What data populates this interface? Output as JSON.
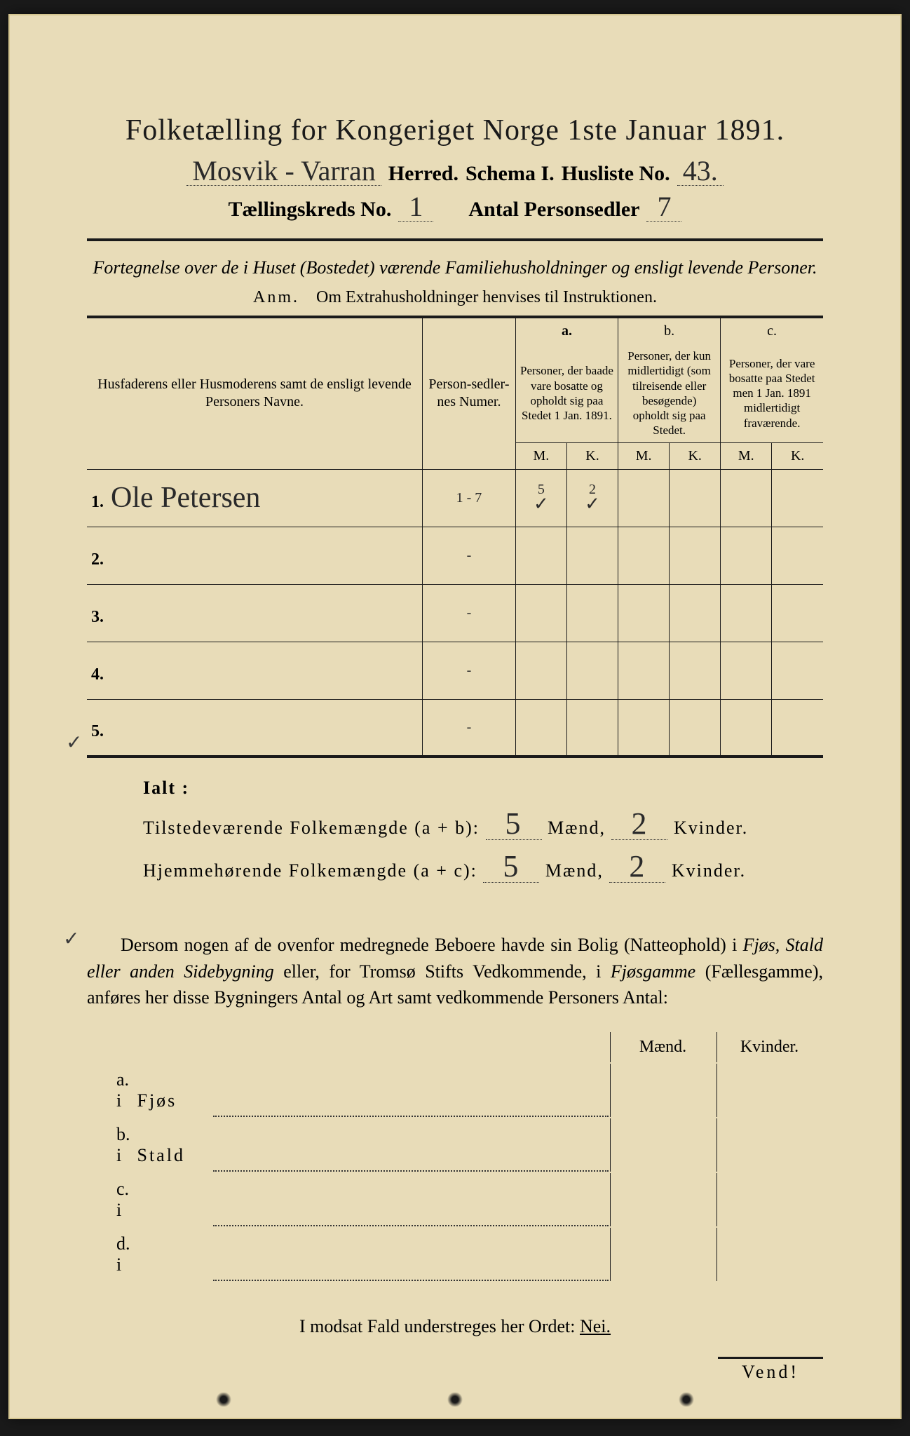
{
  "colors": {
    "paper": "#e8dcb8",
    "ink": "#1a1a1a",
    "hand": "#2a2a2a",
    "background": "#1a1a1a"
  },
  "header": {
    "title": "Folketælling for Kongeriget Norge 1ste Januar 1891.",
    "herred_value": "Mosvik - Varran",
    "herred_label": "Herred.",
    "schema_label": "Schema I.",
    "husliste_label": "Husliste No.",
    "husliste_value": "43.",
    "kreds_label": "Tællingskreds No.",
    "kreds_value": "1",
    "antal_label": "Antal Personsedler",
    "antal_value": "7"
  },
  "intro": {
    "text": "Fortegnelse over de i Huset (Bostedet) værende Familiehusholdninger og ensligt levende Personer.",
    "anm_label": "Anm.",
    "anm_text": "Om Extrahusholdninger henvises til Instruktionen."
  },
  "table": {
    "col_name": "Husfaderens eller Husmoderens samt de ensligt levende Personers Navne.",
    "col_sedler": "Person-sedler-nes Numer.",
    "col_a_label": "a.",
    "col_a_text": "Personer, der baade vare bosatte og opholdt sig paa Stedet 1 Jan. 1891.",
    "col_b_label": "b.",
    "col_b_text": "Personer, der kun midlertidigt (som tilreisende eller besøgende) opholdt sig paa Stedet.",
    "col_c_label": "c.",
    "col_c_text": "Personer, der vare bosatte paa Stedet men 1 Jan. 1891 midlertidigt fraværende.",
    "m": "M.",
    "k": "K.",
    "rows": [
      {
        "n": "1.",
        "name": "Ole Petersen",
        "sedler": "1 - 7",
        "a_m": "5",
        "a_k": "2",
        "b_m": "",
        "b_k": "",
        "c_m": "",
        "c_k": ""
      },
      {
        "n": "2.",
        "name": "",
        "sedler": "-",
        "a_m": "",
        "a_k": "",
        "b_m": "",
        "b_k": "",
        "c_m": "",
        "c_k": ""
      },
      {
        "n": "3.",
        "name": "",
        "sedler": "-",
        "a_m": "",
        "a_k": "",
        "b_m": "",
        "b_k": "",
        "c_m": "",
        "c_k": ""
      },
      {
        "n": "4.",
        "name": "",
        "sedler": "-",
        "a_m": "",
        "a_k": "",
        "b_m": "",
        "b_k": "",
        "c_m": "",
        "c_k": ""
      },
      {
        "n": "5.",
        "name": "",
        "sedler": "-",
        "a_m": "",
        "a_k": "",
        "b_m": "",
        "b_k": "",
        "c_m": "",
        "c_k": ""
      }
    ],
    "row1_checks": {
      "a_m": "✓",
      "a_k": "✓"
    }
  },
  "totals": {
    "ialt": "Ialt :",
    "tilstede_label": "Tilstedeværende Folkemængde (a + b):",
    "hjemme_label": "Hjemmehørende Folkemængde (a + c):",
    "maend": "Mænd,",
    "kvinder": "Kvinder.",
    "tilstede_m": "5",
    "tilstede_k": "2",
    "hjemme_m": "5",
    "hjemme_k": "2"
  },
  "building_para": "Dersom nogen af de ovenfor medregnede Beboere havde sin Bolig (Natteophold) i Fjøs, Stald eller anden Sidebygning eller, for Tromsø Stifts Vedkommende, i Fjøsgamme (Fællesgamme), anføres her disse Bygningers Antal og Art samt vedkommende Personers Antal:",
  "bottom": {
    "maend": "Mænd.",
    "kvinder": "Kvinder.",
    "rows": [
      {
        "lbl": "a.  i",
        "typ": "Fjøs"
      },
      {
        "lbl": "b.  i",
        "typ": "Stald"
      },
      {
        "lbl": "c.  i",
        "typ": ""
      },
      {
        "lbl": "d.  i",
        "typ": ""
      }
    ]
  },
  "nei_line": "I modsat Fald understreges her Ordet:",
  "nei": "Nei.",
  "vend": "Vend!"
}
